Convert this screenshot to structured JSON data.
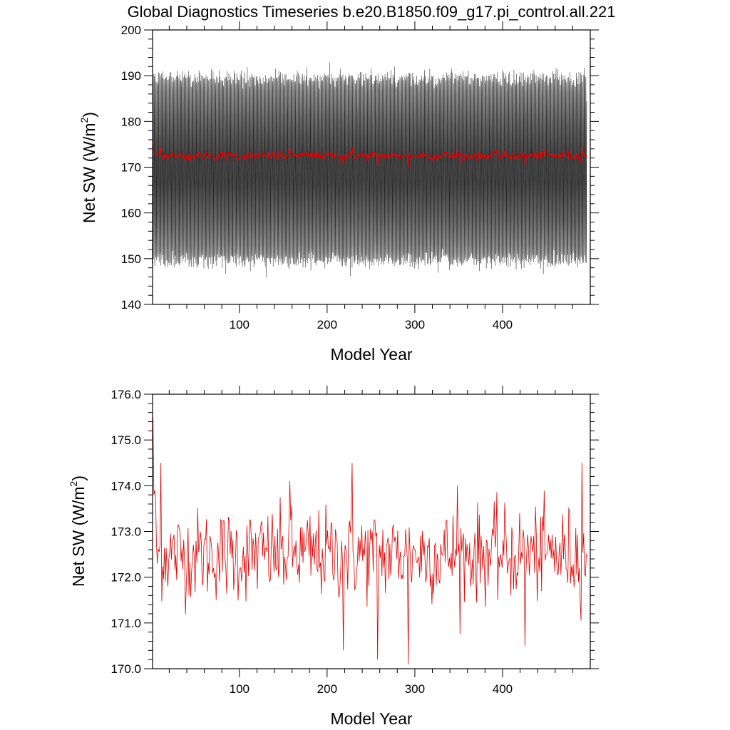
{
  "figure": {
    "title": "Global Diagnostics Timeseries b.e20.B1850.f09_g17.pi_control.all.221"
  },
  "chart_data": [
    {
      "type": "line",
      "xlabel": "Model Year",
      "ylabel_main": "Net SW (W/m",
      "ylabel_sup": "2",
      "ylabel_close": ")",
      "xlim": [
        1,
        500
      ],
      "ylim": [
        140,
        200
      ],
      "xticks": [
        100,
        200,
        300,
        400
      ],
      "xtick_labels": [
        "100",
        "200",
        "300",
        "400"
      ],
      "yticks": [
        140,
        150,
        160,
        170,
        180,
        190,
        200
      ],
      "ytick_labels": [
        "140",
        "150",
        "160",
        "170",
        "180",
        "190",
        "200"
      ],
      "series": [
        {
          "kind": "monthly",
          "color": "#000000",
          "annual_cycle_mean": 170.5,
          "annual_cycle_min": 149.5,
          "annual_cycle_max": 189.5
        },
        {
          "kind": "annual",
          "color": "#dd0000",
          "mean": 172.5
        }
      ]
    },
    {
      "type": "line",
      "xlabel": "Model Year",
      "ylabel_main": "Net SW (W/m",
      "ylabel_sup": "2",
      "ylabel_close": ")",
      "xlim": [
        1,
        500
      ],
      "ylim": [
        170.0,
        176.0
      ],
      "xticks": [
        100,
        200,
        300,
        400
      ],
      "xtick_labels": [
        "100",
        "200",
        "300",
        "400"
      ],
      "yticks": [
        170,
        171,
        172,
        173,
        174,
        175,
        176
      ],
      "ytick_labels": [
        "170.0",
        "171.0",
        "172.0",
        "173.0",
        "174.0",
        "175.0",
        "176.0"
      ],
      "series": [
        {
          "kind": "annual",
          "color": "#dd0000",
          "mean": 172.5,
          "first_year_value": 175.5,
          "peaks": [
            [
              10,
              174.5
            ],
            [
              157,
              174.1
            ],
            [
              228,
              174.5
            ],
            [
              348,
              174.0
            ],
            [
              490,
              174.5
            ]
          ],
          "troughs": [
            [
              218,
              170.4
            ],
            [
              257,
              170.2
            ],
            [
              292,
              170.1
            ],
            [
              425,
              170.5
            ]
          ]
        }
      ]
    }
  ]
}
